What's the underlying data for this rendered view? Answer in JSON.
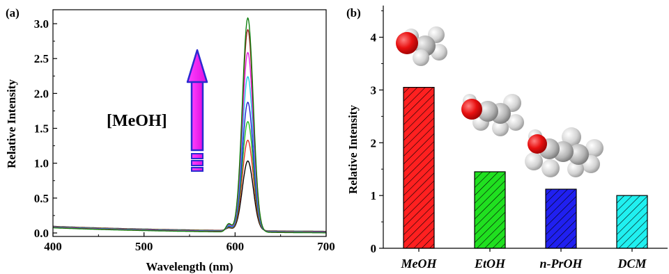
{
  "chart_data": [
    {
      "panel": "(a)",
      "type": "line",
      "xlabel": "Wavelength (nm)",
      "ylabel": "Relative Intensity",
      "xlim": [
        400,
        700
      ],
      "ylim": [
        -0.05,
        3.2
      ],
      "xticks": [
        400,
        500,
        600,
        700
      ],
      "yticks": [
        0.0,
        0.5,
        1.0,
        1.5,
        2.0,
        2.5,
        3.0
      ],
      "peak_wavelength": 614,
      "annotation": "[MeOH]",
      "arrow_direction": "up",
      "grid": false,
      "series": [
        {
          "color": "#000000",
          "peak": 1.0
        },
        {
          "color": "#e03020",
          "peak": 1.3
        },
        {
          "color": "#20c020",
          "peak": 1.57
        },
        {
          "color": "#2020d0",
          "peak": 1.85
        },
        {
          "color": "#20c8e8",
          "peak": 2.22
        },
        {
          "color": "#e020e0",
          "peak": 2.57
        },
        {
          "color": "#a02020",
          "peak": 2.9
        },
        {
          "color": "#108010",
          "peak": 3.07
        }
      ]
    },
    {
      "panel": "(b)",
      "type": "bar",
      "ylabel": "Relative Intensity",
      "ylim": [
        0,
        4.6
      ],
      "yticks": [
        0,
        1,
        2,
        3,
        4
      ],
      "categories": [
        "MeOH",
        "EtOH",
        "n-PrOH",
        "DCM"
      ],
      "values": [
        3.05,
        1.45,
        1.12,
        1.0
      ],
      "colors": [
        "#ff2020",
        "#20e020",
        "#2020f0",
        "#20f0f0"
      ],
      "pattern": "diagonal-hatch",
      "grid": false
    }
  ]
}
